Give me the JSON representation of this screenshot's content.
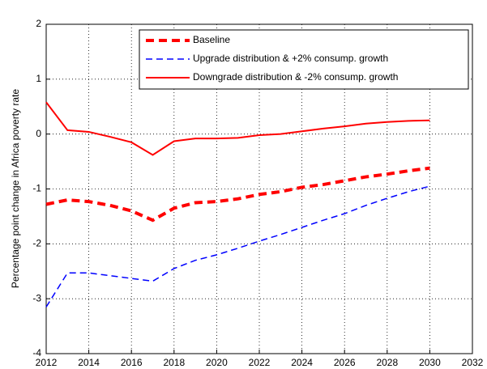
{
  "chart_data": {
    "type": "line",
    "y_label": "Percentage point change in Africa poverty rate",
    "x": [
      2012,
      2013,
      2014,
      2015,
      2016,
      2017,
      2018,
      2019,
      2020,
      2021,
      2022,
      2023,
      2024,
      2025,
      2026,
      2027,
      2028,
      2029,
      2030
    ],
    "series": [
      {
        "name": "Baseline",
        "color": "#ff0000",
        "line_style": "dashed",
        "line_width": 4,
        "values": [
          -1.28,
          -1.2,
          -1.23,
          -1.3,
          -1.4,
          -1.57,
          -1.35,
          -1.25,
          -1.23,
          -1.18,
          -1.1,
          -1.05,
          -0.97,
          -0.92,
          -0.85,
          -0.78,
          -0.73,
          -0.67,
          -0.62
        ]
      },
      {
        "name": "Upgrade distribution & +2% consump. growth",
        "color": "#0000ff",
        "line_style": "dashed",
        "line_width": 1.5,
        "values": [
          -3.15,
          -2.53,
          -2.53,
          -2.58,
          -2.63,
          -2.68,
          -2.45,
          -2.3,
          -2.2,
          -2.08,
          -1.95,
          -1.83,
          -1.7,
          -1.57,
          -1.45,
          -1.3,
          -1.17,
          -1.05,
          -0.95
        ]
      },
      {
        "name": "Downgrade distribution & -2% consump. growth",
        "color": "#ff0000",
        "line_style": "solid",
        "line_width": 2,
        "values": [
          0.58,
          0.07,
          0.04,
          -0.05,
          -0.15,
          -0.38,
          -0.13,
          -0.08,
          -0.08,
          -0.07,
          -0.02,
          0.0,
          0.05,
          0.1,
          0.14,
          0.19,
          0.22,
          0.24,
          0.25
        ]
      }
    ],
    "xlim": [
      2012,
      2032
    ],
    "xticks": [
      2012,
      2014,
      2016,
      2018,
      2020,
      2022,
      2024,
      2026,
      2028,
      2030,
      2032
    ],
    "ylim": [
      -4,
      2
    ],
    "yticks": [
      -4,
      -3,
      -2,
      -1,
      0,
      1,
      2
    ],
    "grid": true,
    "legend": "upper-right"
  }
}
